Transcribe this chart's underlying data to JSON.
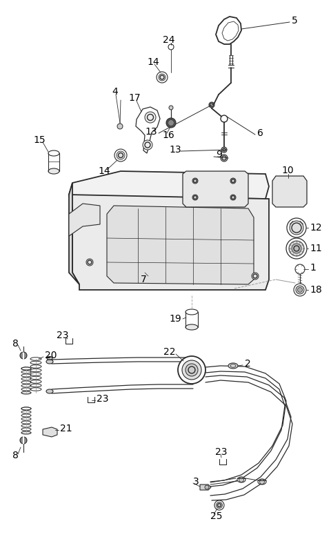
{
  "background": "#ffffff",
  "line_color": "#2a2a2a",
  "label_color": "#000000",
  "lw_main": 1.0,
  "lw_thin": 0.6,
  "lw_thick": 1.3,
  "figsize": [
    4.8,
    7.94
  ],
  "dpi": 100
}
